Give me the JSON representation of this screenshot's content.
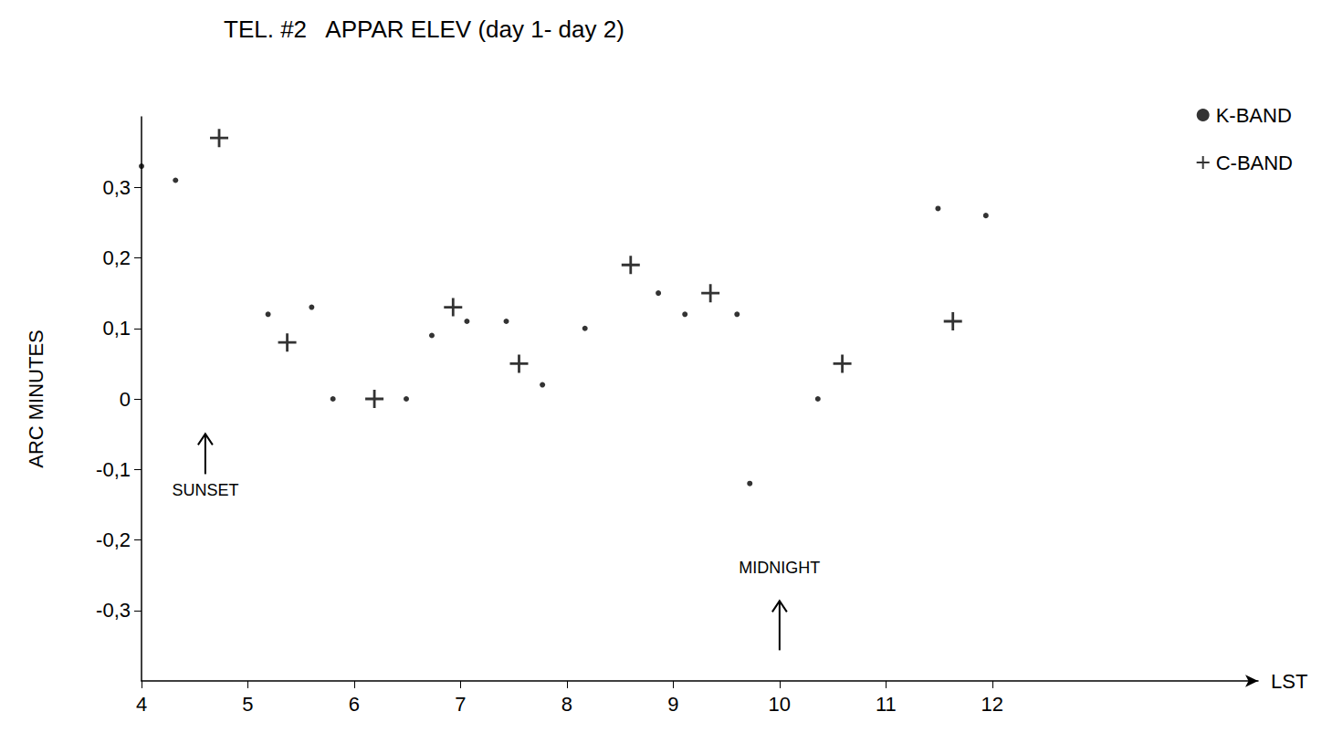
{
  "chart_data": {
    "type": "scatter",
    "title": "TEL. #2   APPAR ELEV (day 1- day 2)",
    "x_label": "LST",
    "y_label": "ARC MINUTES",
    "xlim": [
      4,
      14.5
    ],
    "xticks": [
      4,
      5,
      6,
      7,
      8,
      9,
      10,
      11,
      12
    ],
    "ylim": [
      -0.4,
      0.4
    ],
    "yticks": [
      {
        "value": -0.3,
        "label": "-0,3"
      },
      {
        "value": -0.2,
        "label": "-0,2"
      },
      {
        "value": -0.1,
        "label": "-0,1"
      },
      0,
      {
        "value": 0.1,
        "label": "0,1"
      },
      {
        "value": 0.2,
        "label": "0,2"
      },
      {
        "value": 0.3,
        "label": "0,3"
      }
    ],
    "grid": false,
    "legend": "top-right",
    "series": [
      {
        "name": "K-BAND",
        "color": "#000000",
        "marker": "dot",
        "x": [
          4.0,
          4.32,
          5.19,
          5.6,
          5.8,
          6.49,
          6.73,
          7.06,
          7.43,
          7.77,
          8.17,
          8.86,
          9.11,
          9.6,
          9.72,
          10.36,
          11.49,
          11.94
        ],
        "values": [
          0.33,
          0.31,
          0.12,
          0.13,
          0.0,
          0.0,
          0.09,
          0.11,
          0.11,
          0.02,
          0.1,
          0.15,
          0.12,
          0.12,
          -0.12,
          0.0,
          0.27,
          0.26
        ]
      },
      {
        "name": "C-BAND",
        "color": "#000000",
        "marker": "plus",
        "x": [
          4.73,
          5.37,
          6.19,
          6.93,
          7.55,
          8.6,
          9.35,
          10.59,
          11.63
        ],
        "values": [
          0.37,
          0.08,
          0.0,
          0.13,
          0.05,
          0.19,
          0.15,
          0.05,
          0.11
        ]
      }
    ],
    "annotations": [
      {
        "text": "SUNSET",
        "x": 4.6,
        "y": -0.13
      },
      {
        "text": "MIDNIGHT",
        "x": 10,
        "y": -0.24
      }
    ]
  }
}
